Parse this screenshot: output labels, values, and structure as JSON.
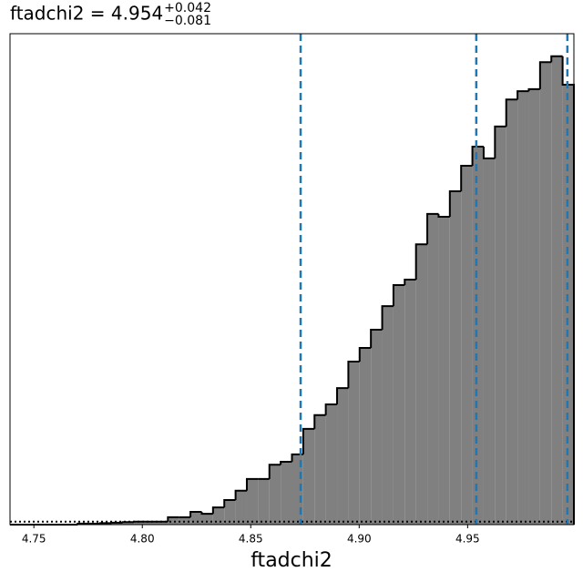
{
  "chart_data": {
    "type": "histogram",
    "title": {
      "main": "ftadchi2 = 4.954",
      "sup": "+0.042",
      "sub": "−0.081"
    },
    "x_label": "ftadchi2",
    "bins": [
      4.739,
      4.7442,
      4.7494,
      4.7546,
      4.7598,
      4.765,
      4.7702,
      4.7754,
      4.7806,
      4.7858,
      4.791,
      4.7962,
      4.8014,
      4.8066,
      4.8118,
      4.817,
      4.8222,
      4.8274,
      4.8326,
      4.8378,
      4.843,
      4.8482,
      4.8534,
      4.8586,
      4.8638,
      4.869,
      4.8742,
      4.8794,
      4.8846,
      4.8898,
      4.895,
      4.9002,
      4.9054,
      4.9106,
      4.9158,
      4.921,
      4.9262,
      4.9314,
      4.9366,
      4.9418,
      4.947,
      4.9522,
      4.9574,
      4.9626,
      4.9678,
      4.973,
      4.9782,
      4.9834,
      4.9886,
      4.9938,
      4.999
    ],
    "values": [
      0,
      0,
      0,
      0,
      0,
      0,
      0.2,
      0.2,
      0.3,
      0.4,
      0.5,
      0.6,
      0.6,
      0.6,
      1.5,
      1.5,
      2.6,
      2.2,
      3.5,
      5.0,
      6.9,
      9.3,
      9.3,
      12.2,
      12.8,
      14.3,
      19.5,
      22.3,
      24.5,
      27.8,
      33.2,
      36.0,
      39.7,
      44.5,
      48.8,
      49.9,
      57.1,
      63.3,
      62.7,
      67.9,
      73.1,
      77.0,
      74.6,
      81.1,
      86.6,
      88.3,
      88.7,
      94.2,
      95.4,
      89.6
    ],
    "color": "#808080",
    "edge_color": "#000000",
    "vlines": [
      4.873,
      4.954,
      4.996
    ],
    "vline_color": "#1f77b4",
    "hline": 0.6,
    "xlim": [
      4.739,
      4.999
    ],
    "xticks": [
      4.75,
      {
        "value": 4.8,
        "label": "4.80"
      },
      4.85,
      {
        "value": 4.9,
        "label": "4.90"
      },
      4.95
    ],
    "ylim": [
      0,
      100
    ]
  }
}
